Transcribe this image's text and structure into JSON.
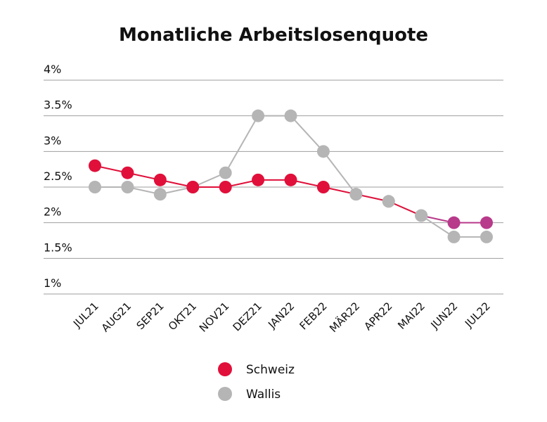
{
  "chart_data": {
    "type": "line",
    "title": "Monatliche Arbeitslosenquote",
    "categories": [
      "JUL21",
      "AUG21",
      "SEP21",
      "OKT21",
      "NOV21",
      "DEZ21",
      "JAN22",
      "FEB22",
      "MÄR22",
      "APR22",
      "MAI22",
      "JUN22",
      "JUL22"
    ],
    "y_tick_labels": [
      "1%",
      "1.5%",
      "2%",
      "2.5%",
      "3%",
      "3.5%",
      "4%"
    ],
    "y_ticks": [
      1,
      1.5,
      2,
      2.5,
      3,
      3.5,
      4
    ],
    "ylim": [
      1,
      4
    ],
    "grid": true,
    "legend_position": "bottom",
    "series": [
      {
        "name": "Schweiz",
        "color": "#e0103a",
        "values": [
          2.8,
          2.7,
          2.6,
          2.5,
          2.5,
          2.6,
          2.6,
          2.5,
          2.4,
          2.3,
          2.1,
          2.0,
          2.0
        ],
        "point_colors": [
          "#e0103a",
          "#e0103a",
          "#e0103a",
          "#e0103a",
          "#e0103a",
          "#e0103a",
          "#e0103a",
          "#e0103a",
          "#b5b5b5",
          "#b5b5b5",
          "#b5b5b5",
          "#b83a8a",
          "#b83a8a"
        ]
      },
      {
        "name": "Wallis",
        "color": "#b5b5b5",
        "values": [
          2.5,
          2.5,
          2.4,
          2.5,
          2.7,
          3.5,
          3.5,
          3.0,
          2.4,
          2.3,
          2.1,
          1.8,
          1.8
        ]
      }
    ]
  }
}
